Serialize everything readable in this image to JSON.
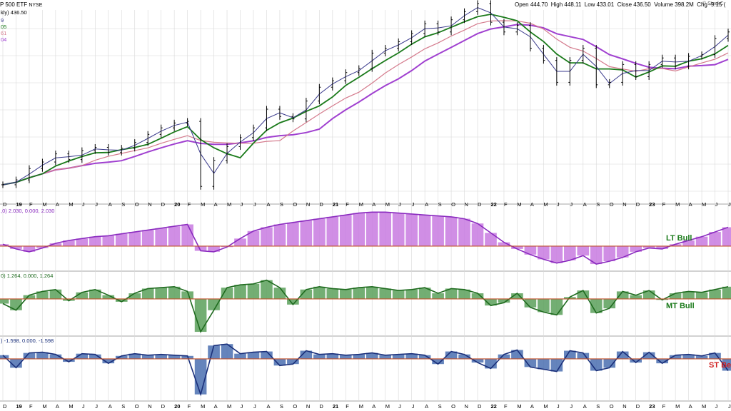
{
  "header": {
    "symbol": "P 500 ETF",
    "exchange": "NYSE",
    "ohlc": [
      {
        "label": "Open",
        "value": "444.70"
      },
      {
        "label": "High",
        "value": "448.11"
      },
      {
        "label": "Low",
        "value": "433.01"
      },
      {
        "label": "Close",
        "value": "436.50"
      },
      {
        "label": "Volume",
        "value": "398.2M"
      },
      {
        "label": "Chg",
        "value": "-9.15 ("
      }
    ],
    "brand": "© StockC",
    "legend_price": "kly) 436.50",
    "legend_ma": [
      "9",
      "05",
      "61",
      "04"
    ]
  },
  "colors": {
    "price": "#000000",
    "ma1": "#3a3a8c",
    "ma2": "#1a7a1a",
    "ma3": "#d47a8c",
    "ma4": "#a040d0",
    "lt_fill": "#c87ae0",
    "lt_line": "#8a2bbf",
    "mt_fill": "#5aa05a",
    "mt_line": "#1f6b1f",
    "st_fill": "#4a6fb0",
    "st_line": "#1a2f7a",
    "zero": "#c0502a",
    "grid": "#d8d8d8"
  },
  "x_axis_ticks": [
    "D",
    "19",
    "F",
    "M",
    "A",
    "M",
    "J",
    "J",
    "A",
    "S",
    "O",
    "N",
    "D",
    "20",
    "F",
    "M",
    "A",
    "M",
    "J",
    "J",
    "A",
    "S",
    "O",
    "N",
    "D",
    "21",
    "F",
    "M",
    "A",
    "M",
    "J",
    "J",
    "A",
    "S",
    "O",
    "N",
    "D",
    "22",
    "F",
    "M",
    "A",
    "M",
    "J",
    "J",
    "A",
    "S",
    "O",
    "N",
    "D",
    "23",
    "F",
    "M",
    "A",
    "M",
    "J",
    "J"
  ],
  "panels": {
    "lt": {
      "legend": ",0) 2.030, 0.000, 2.030",
      "label": "LT Bull"
    },
    "mt": {
      "legend": "0) 1.264, 0.000, 1.264",
      "label": "MT Bull"
    },
    "st": {
      "legend": ") -1.598, 0.000, -1.598",
      "label": "ST Be"
    }
  },
  "chart_data": [
    {
      "type": "line",
      "x": [
        "Dec 2018",
        "Jan 2019",
        "Feb 2019",
        "Mar 2019",
        "Apr 2019",
        "May 2019",
        "Jun 2019",
        "Jul 2019",
        "Aug 2019",
        "Sep 2019",
        "Oct 2019",
        "Nov 2019",
        "Dec 2019",
        "Jan 2020",
        "Feb 2020",
        "Mar 2020",
        "Apr 2020",
        "May 2020",
        "Jun 2020",
        "Jul 2020",
        "Aug 2020",
        "Sep 2020",
        "Oct 2020",
        "Nov 2020",
        "Dec 2020",
        "Jan 2021",
        "Feb 2021",
        "Mar 2021",
        "Apr 2021",
        "May 2021",
        "Jun 2021",
        "Jul 2021",
        "Aug 2021",
        "Sep 2021",
        "Oct 2021",
        "Nov 2021",
        "Dec 2021",
        "Jan 2022",
        "Feb 2022",
        "Mar 2022",
        "Apr 2022",
        "May 2022",
        "Jun 2022",
        "Jul 2022",
        "Aug 2022",
        "Sep 2022",
        "Oct 2022",
        "Nov 2022",
        "Dec 2022",
        "Jan 2023",
        "Feb 2023",
        "Mar 2023",
        "Apr 2023",
        "May 2023",
        "Jun 2023",
        "Jul 2023"
      ],
      "series": [
        {
          "values": [
            252,
            258,
            272,
            280,
            290,
            283,
            294,
            298,
            292,
            297,
            304,
            314,
            322,
            328,
            330,
            250,
            282,
            299,
            310,
            322,
            345,
            336,
            333,
            355,
            372,
            380,
            390,
            395,
            414,
            420,
            428,
            438,
            450,
            440,
            455,
            465,
            475,
            452,
            440,
            448,
            420,
            405,
            378,
            405,
            420,
            375,
            378,
            400,
            385,
            400,
            408,
            398,
            410,
            412,
            432,
            440
          ]
        }
      ],
      "ylim": [
        230,
        460
      ]
    },
    {
      "type": "area",
      "series": [
        {
          "values": [
            0.2,
            -0.3,
            -0.6,
            -0.2,
            0.3,
            0.6,
            0.8,
            1.0,
            1.1,
            1.3,
            1.5,
            1.7,
            1.9,
            2.1,
            2.3,
            -0.5,
            -0.6,
            -0.1,
            0.8,
            1.6,
            2.0,
            2.3,
            2.5,
            2.7,
            2.9,
            3.1,
            3.3,
            3.5,
            3.6,
            3.6,
            3.5,
            3.4,
            3.3,
            3.2,
            3.1,
            2.9,
            2.4,
            1.4,
            0.4,
            -0.3,
            -0.9,
            -1.4,
            -1.8,
            -1.5,
            -1.0,
            -1.9,
            -1.6,
            -1.2,
            -0.6,
            -0.2,
            -0.3,
            0.2,
            0.6,
            1.0,
            1.5,
            2.0
          ]
        }
      ],
      "ylim": [
        -2.5,
        4.0
      ]
    },
    {
      "type": "area",
      "series": [
        {
          "values": [
            -0.5,
            -1.2,
            0.4,
            0.8,
            1.0,
            -0.2,
            0.7,
            1.0,
            0.4,
            -0.3,
            0.6,
            1.1,
            1.2,
            1.3,
            0.8,
            -3.5,
            -1.2,
            1.2,
            1.5,
            1.6,
            2.0,
            1.2,
            -0.6,
            1.0,
            1.3,
            1.1,
            1.0,
            1.2,
            1.3,
            1.1,
            0.9,
            1.0,
            1.2,
            0.6,
            1.1,
            1.0,
            0.6,
            -0.7,
            -0.4,
            0.6,
            -0.9,
            -1.4,
            -1.7,
            0.2,
            0.9,
            -1.5,
            -1.0,
            0.8,
            0.4,
            0.9,
            -0.1,
            0.6,
            0.8,
            0.7,
            1.0,
            1.3
          ]
        }
      ],
      "ylim": [
        -3.8,
        2.5
      ]
    },
    {
      "type": "area",
      "series": [
        {
          "values": [
            0.5,
            -1.2,
            0.8,
            0.9,
            0.6,
            -0.4,
            0.7,
            0.6,
            -0.6,
            0.4,
            0.7,
            0.5,
            0.6,
            0.5,
            0.4,
            -4.8,
            1.8,
            2.0,
            0.7,
            0.9,
            1.0,
            -0.9,
            -0.7,
            1.1,
            0.6,
            0.7,
            0.5,
            0.6,
            0.8,
            0.5,
            0.6,
            0.7,
            0.5,
            -0.7,
            1.0,
            0.6,
            -0.5,
            -1.3,
            0.6,
            1.2,
            -1.1,
            -1.4,
            -1.7,
            1.1,
            0.8,
            -1.6,
            -1.2,
            1.0,
            -0.5,
            0.9,
            -0.6,
            0.5,
            0.6,
            0.4,
            0.8,
            -1.598
          ]
        }
      ],
      "ylim": [
        -5.5,
        2.5
      ]
    }
  ]
}
